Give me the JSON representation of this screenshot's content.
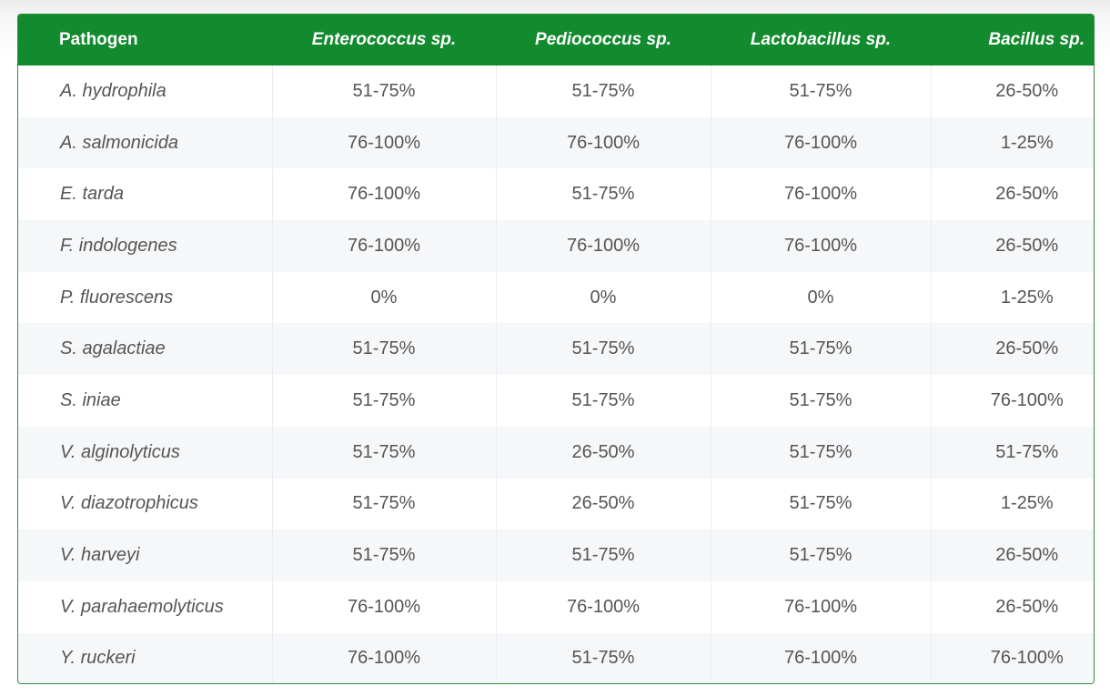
{
  "table": {
    "headers": [
      "Pathogen",
      "Enterococcus sp.",
      "Pediococcus sp.",
      "Lactobacillus sp.",
      "Bacillus sp."
    ],
    "rows": [
      [
        "A. hydrophila",
        "51-75%",
        "51-75%",
        "51-75%",
        "26-50%"
      ],
      [
        "A. salmonicida",
        "76-100%",
        "76-100%",
        "76-100%",
        "1-25%"
      ],
      [
        "E. tarda",
        "76-100%",
        "51-75%",
        "76-100%",
        "26-50%"
      ],
      [
        "F. indologenes",
        "76-100%",
        "76-100%",
        "76-100%",
        "26-50%"
      ],
      [
        "P. fluorescens",
        "0%",
        "0%",
        "0%",
        "1-25%"
      ],
      [
        "S. agalactiae",
        "51-75%",
        "51-75%",
        "51-75%",
        "26-50%"
      ],
      [
        "S. iniae",
        "51-75%",
        "51-75%",
        "51-75%",
        "76-100%"
      ],
      [
        "V. alginolyticus",
        "51-75%",
        "26-50%",
        "51-75%",
        "51-75%"
      ],
      [
        "V. diazotrophicus",
        "51-75%",
        "26-50%",
        "51-75%",
        "1-25%"
      ],
      [
        "V. harveyi",
        "51-75%",
        "51-75%",
        "51-75%",
        "26-50%"
      ],
      [
        "V. parahaemolyticus",
        "76-100%",
        "76-100%",
        "76-100%",
        "26-50%"
      ],
      [
        "Y. ruckeri",
        "76-100%",
        "51-75%",
        "76-100%",
        "76-100%"
      ]
    ]
  },
  "theme": {
    "header_bg": "#128a2e",
    "header_text": "#ffffff",
    "cell_text": "#555555",
    "stripe_bg": "#f6f7f9"
  }
}
